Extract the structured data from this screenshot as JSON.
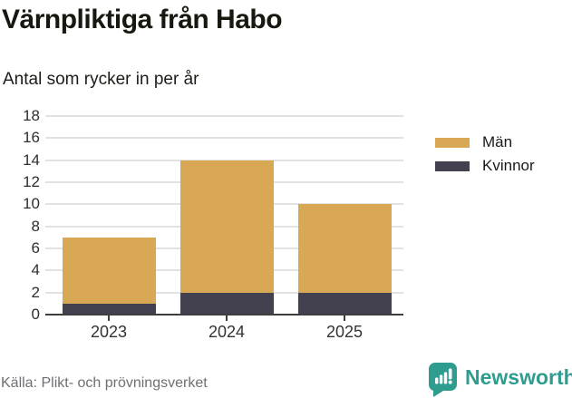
{
  "chart_data": {
    "type": "bar",
    "stacked": true,
    "title": "Värnpliktiga från Habo",
    "subtitle": "Antal som rycker in per år",
    "categories": [
      "2023",
      "2024",
      "2025"
    ],
    "series": [
      {
        "name": "Män",
        "color": "#D8A855",
        "values": [
          6,
          12,
          8
        ]
      },
      {
        "name": "Kvinnor",
        "color": "#434050",
        "values": [
          1,
          2,
          2
        ]
      }
    ],
    "stack_order_bottom_to_top": [
      "Kvinnor",
      "Män"
    ],
    "stacked_totals": [
      7,
      14,
      10
    ],
    "xlabel": "",
    "ylabel": "",
    "ylim": [
      0,
      18
    ],
    "yticks": [
      0,
      2,
      4,
      6,
      8,
      10,
      12,
      14,
      16,
      18
    ],
    "grid": "horizontal",
    "legend_position": "right"
  },
  "footer": {
    "source": "Källa: Plikt- och prövningsverket",
    "brand": "Newsworthy"
  },
  "colors": {
    "men": "#D8A855",
    "women": "#434050",
    "brand_teal": "#2F9C90",
    "axis": "#3F3D3D",
    "gridline": "#E2E2E2",
    "title_text": "#181810",
    "muted_text": "#6F6F74"
  }
}
